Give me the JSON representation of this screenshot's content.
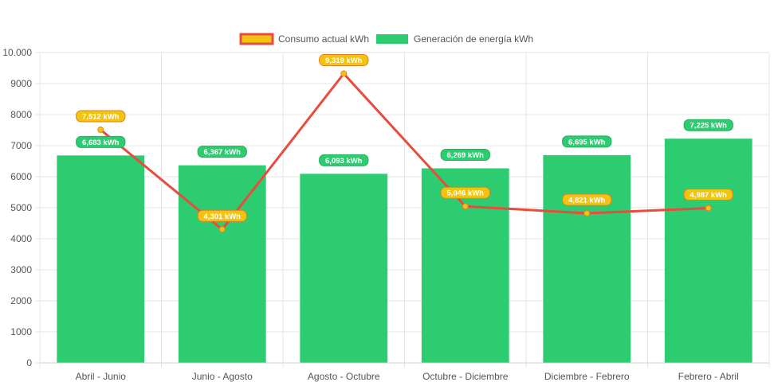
{
  "chart_data": {
    "type": "bar",
    "categories": [
      "Abril - Junio",
      "Junio - Agosto",
      "Agosto - Octubre",
      "Octubre - Diciembre",
      "Diciembre - Febrero",
      "Febrero - Abril"
    ],
    "series": [
      {
        "name": "Consumo actual kWh",
        "type": "line",
        "color": "#e74c3c",
        "fill": "#f1c40f",
        "values": [
          7512,
          4301,
          9319,
          5046,
          4821,
          4987
        ],
        "labels": [
          "7,512 kWh",
          "4,301 kWh",
          "9,319 kWh",
          "5,046 kWh",
          "4,821 kWh",
          "4,987 kWh"
        ]
      },
      {
        "name": "Generación de energía kWh",
        "type": "bar",
        "color": "#2ecc71",
        "values": [
          6683,
          6367,
          6093,
          6269,
          6695,
          7225
        ],
        "labels": [
          "6,683 kWh",
          "6,367 kWh",
          "6,093 kWh",
          "6,269 kWh",
          "6,695 kWh",
          "7,225 kWh"
        ]
      }
    ],
    "ylim": [
      0,
      10000
    ],
    "yticks": [
      0,
      1000,
      2000,
      3000,
      4000,
      5000,
      6000,
      7000,
      8000,
      9000,
      10000
    ],
    "ytick_labels": [
      "0",
      "1000",
      "2000",
      "3000",
      "4000",
      "5000",
      "6000",
      "7000",
      "8000",
      "9000",
      "10.000"
    ],
    "grid": true,
    "legend": "top-center",
    "title": "",
    "xlabel": "",
    "ylabel": ""
  }
}
